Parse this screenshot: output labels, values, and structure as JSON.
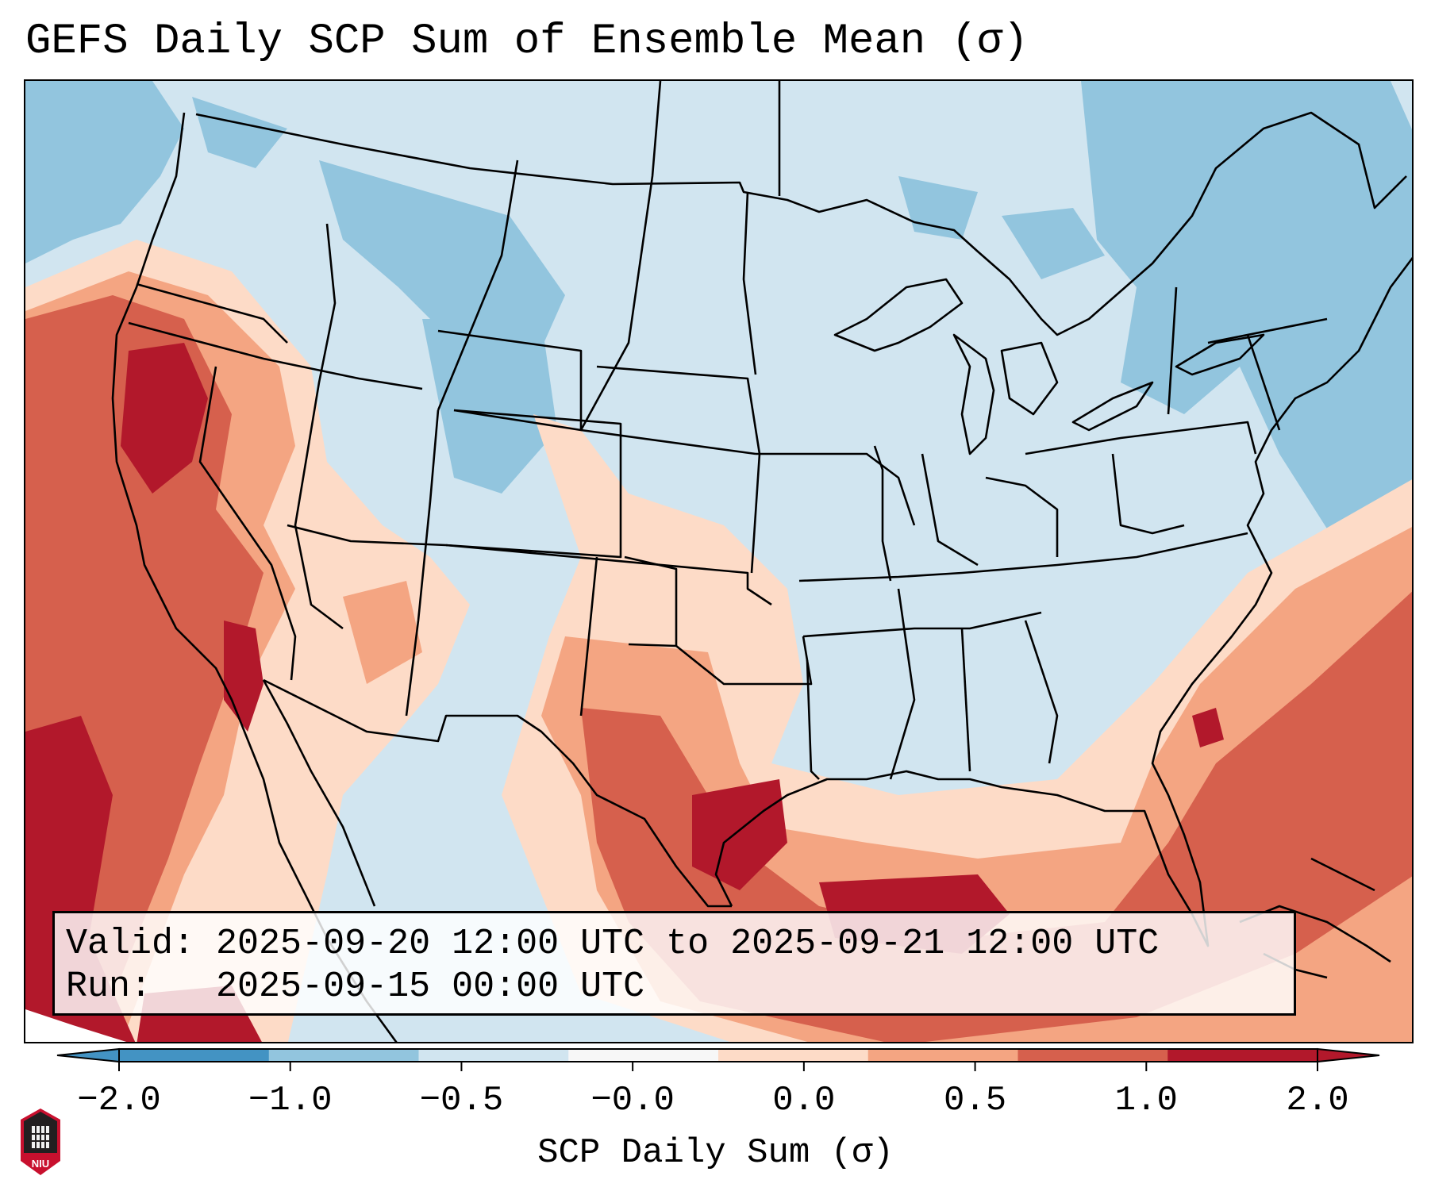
{
  "title": "GEFS Daily SCP Sum of Ensemble Mean (σ)",
  "info": {
    "valid_label": "Valid:",
    "valid_range": "2025-09-20 12:00 UTC to 2025-09-21 12:00 UTC",
    "run_label": "Run:",
    "run_time": "2025-09-15 00:00 UTC"
  },
  "colorbar": {
    "label": "SCP Daily Sum (σ)",
    "ticks": [
      "−2.0",
      "−1.0",
      "−0.5",
      "−0.0",
      "0.0",
      "0.5",
      "1.0",
      "2.0"
    ],
    "colors": [
      "#4393c3",
      "#92c5de",
      "#d1e5f0",
      "#f7f7f7",
      "#fddbc7",
      "#f4a582",
      "#d6604d",
      "#b2182b"
    ],
    "extend": "both"
  },
  "legend_colors": {
    "deep_blue": "#4393c3",
    "light_blue": "#92c5de",
    "pale_blue": "#d1e5f0",
    "neutral": "#f7f7f7",
    "pale_red": "#fddbc7",
    "light_red": "#f4a582",
    "red": "#d6604d",
    "dark_red": "#b2182b"
  },
  "logo": {
    "text": "NIU"
  }
}
